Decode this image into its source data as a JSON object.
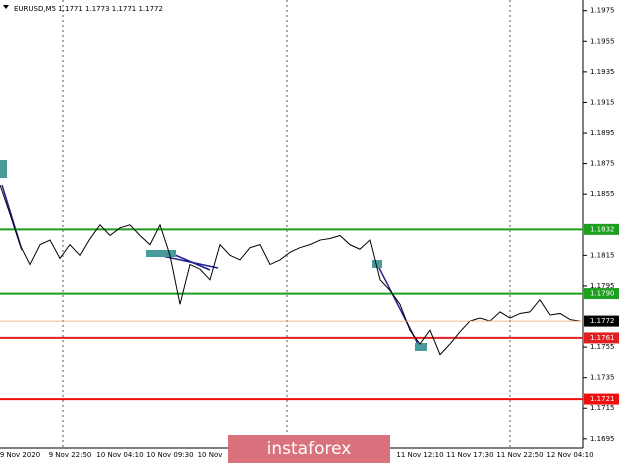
{
  "chart_data": {
    "type": "line",
    "title": "EURUSD,M5  1.1771 1.1773 1.1771 1.1772",
    "watermark": "instaforex",
    "categories": [
      null,
      null,
      "9 Nov 2020",
      null,
      null,
      null,
      null,
      "9 Nov 22:50",
      null,
      null,
      null,
      null,
      "10 Nov 04:10",
      null,
      null,
      null,
      null,
      "10 Nov 09:30",
      null,
      null,
      null,
      "10 Nov",
      null,
      null,
      null,
      null,
      null,
      null,
      null,
      null,
      null,
      null,
      null,
      null,
      null,
      null,
      null,
      null,
      null,
      null,
      null,
      null,
      "11 Nov 12:10",
      null,
      null,
      null,
      null,
      "11 Nov 17:30",
      null,
      null,
      null,
      null,
      "11 Nov 22:50",
      null,
      null,
      null,
      null,
      "12 Nov 04:10",
      null
    ],
    "series": [
      {
        "name": "EURUSD",
        "color": "#000000",
        "values": [
          1.1861,
          1.1842,
          1.1822,
          1.1809,
          1.1822,
          1.1825,
          1.1813,
          1.1822,
          1.1815,
          1.1826,
          1.1835,
          1.1828,
          1.1833,
          1.1835,
          1.1828,
          1.1822,
          1.1835,
          1.1815,
          1.1783,
          1.1809,
          1.1806,
          1.1799,
          1.1822,
          1.1815,
          1.1812,
          1.182,
          1.1822,
          1.1809,
          1.1812,
          1.1817,
          1.182,
          1.1822,
          1.1825,
          1.1826,
          1.1828,
          1.1822,
          1.1819,
          1.1825,
          1.1799,
          1.1792,
          1.1783,
          1.1766,
          1.1757,
          1.1766,
          1.175,
          1.1757,
          1.1765,
          1.1772,
          1.1774,
          1.1772,
          1.1778,
          1.1774,
          1.1777,
          1.1778,
          1.1786,
          1.1776,
          1.1777,
          1.1773,
          1.1772
        ]
      }
    ],
    "ylim": [
      1.1689,
      1.1982
    ],
    "yticks": [
      1.1975,
      1.1955,
      1.1935,
      1.1915,
      1.1895,
      1.1875,
      1.1855,
      1.1815,
      1.1795,
      1.1755,
      1.1735,
      1.1715,
      1.1695
    ],
    "levels": [
      {
        "value": 1.1832,
        "color": "#1e9e1e"
      },
      {
        "value": {
          "value": 1.179,
          "label": "1.1790"
        },
        "color": "#1e9e1e"
      },
      {
        "value": 1.1761,
        "color": "#e02020"
      },
      {
        "value": 1.1721,
        "color": "#ee1010"
      }
    ],
    "current_price": 1.1772
  }
}
